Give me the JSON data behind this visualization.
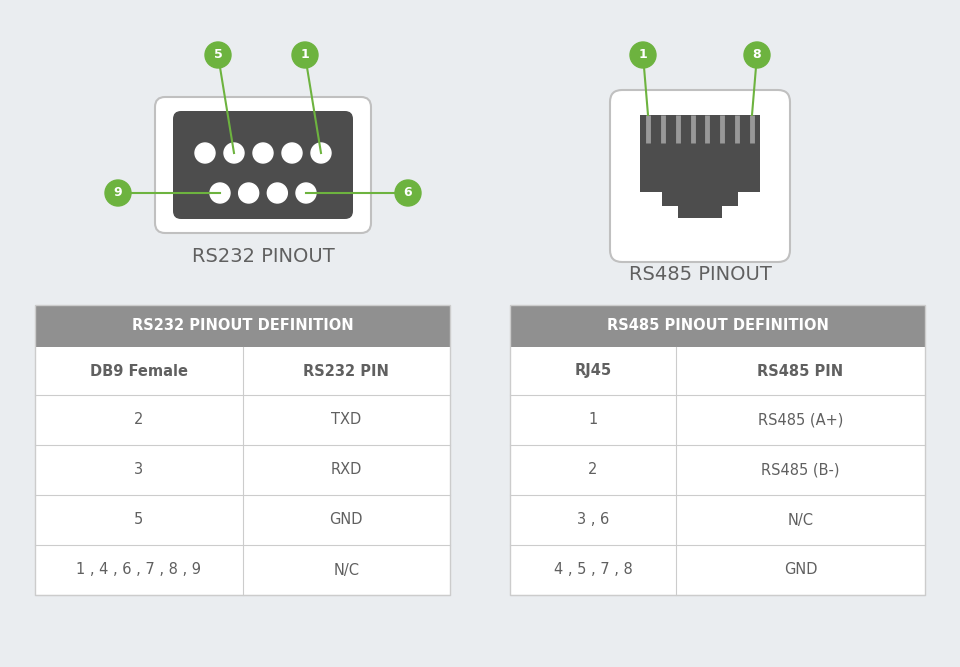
{
  "bg_color": "#eaedf0",
  "connector_color": "#4d4d4d",
  "connector_outline": "#c0c0c0",
  "connector_outline2": "#d8d8d8",
  "green_color": "#6db33f",
  "table_header_color": "#909090",
  "table_line_color": "#cccccc",
  "text_color": "#606060",
  "white": "#ffffff",
  "rs232_title": "RS232 PINOUT",
  "rs485_title": "RS485 PINOUT",
  "rs232_table_header": "RS232 PINOUT DEFINITION",
  "rs232_col1_header": "DB9 Female",
  "rs232_col2_header": "RS232 PIN",
  "rs232_rows": [
    [
      "2",
      "TXD"
    ],
    [
      "3",
      "RXD"
    ],
    [
      "5",
      "GND"
    ],
    [
      "1 , 4 , 6 , 7 , 8 , 9",
      "N/C"
    ]
  ],
  "rs485_table_header": "RS485 PINOUT DEFINITION",
  "rs485_col1_header": "RJ45",
  "rs485_col2_header": "RS485 PIN",
  "rs485_rows": [
    [
      "1",
      "RS485 (A+)"
    ],
    [
      "2",
      "RS485 (B-)"
    ],
    [
      "3 , 6",
      "N/C"
    ],
    [
      "4 , 5 , 7 , 8",
      "GND"
    ]
  ]
}
